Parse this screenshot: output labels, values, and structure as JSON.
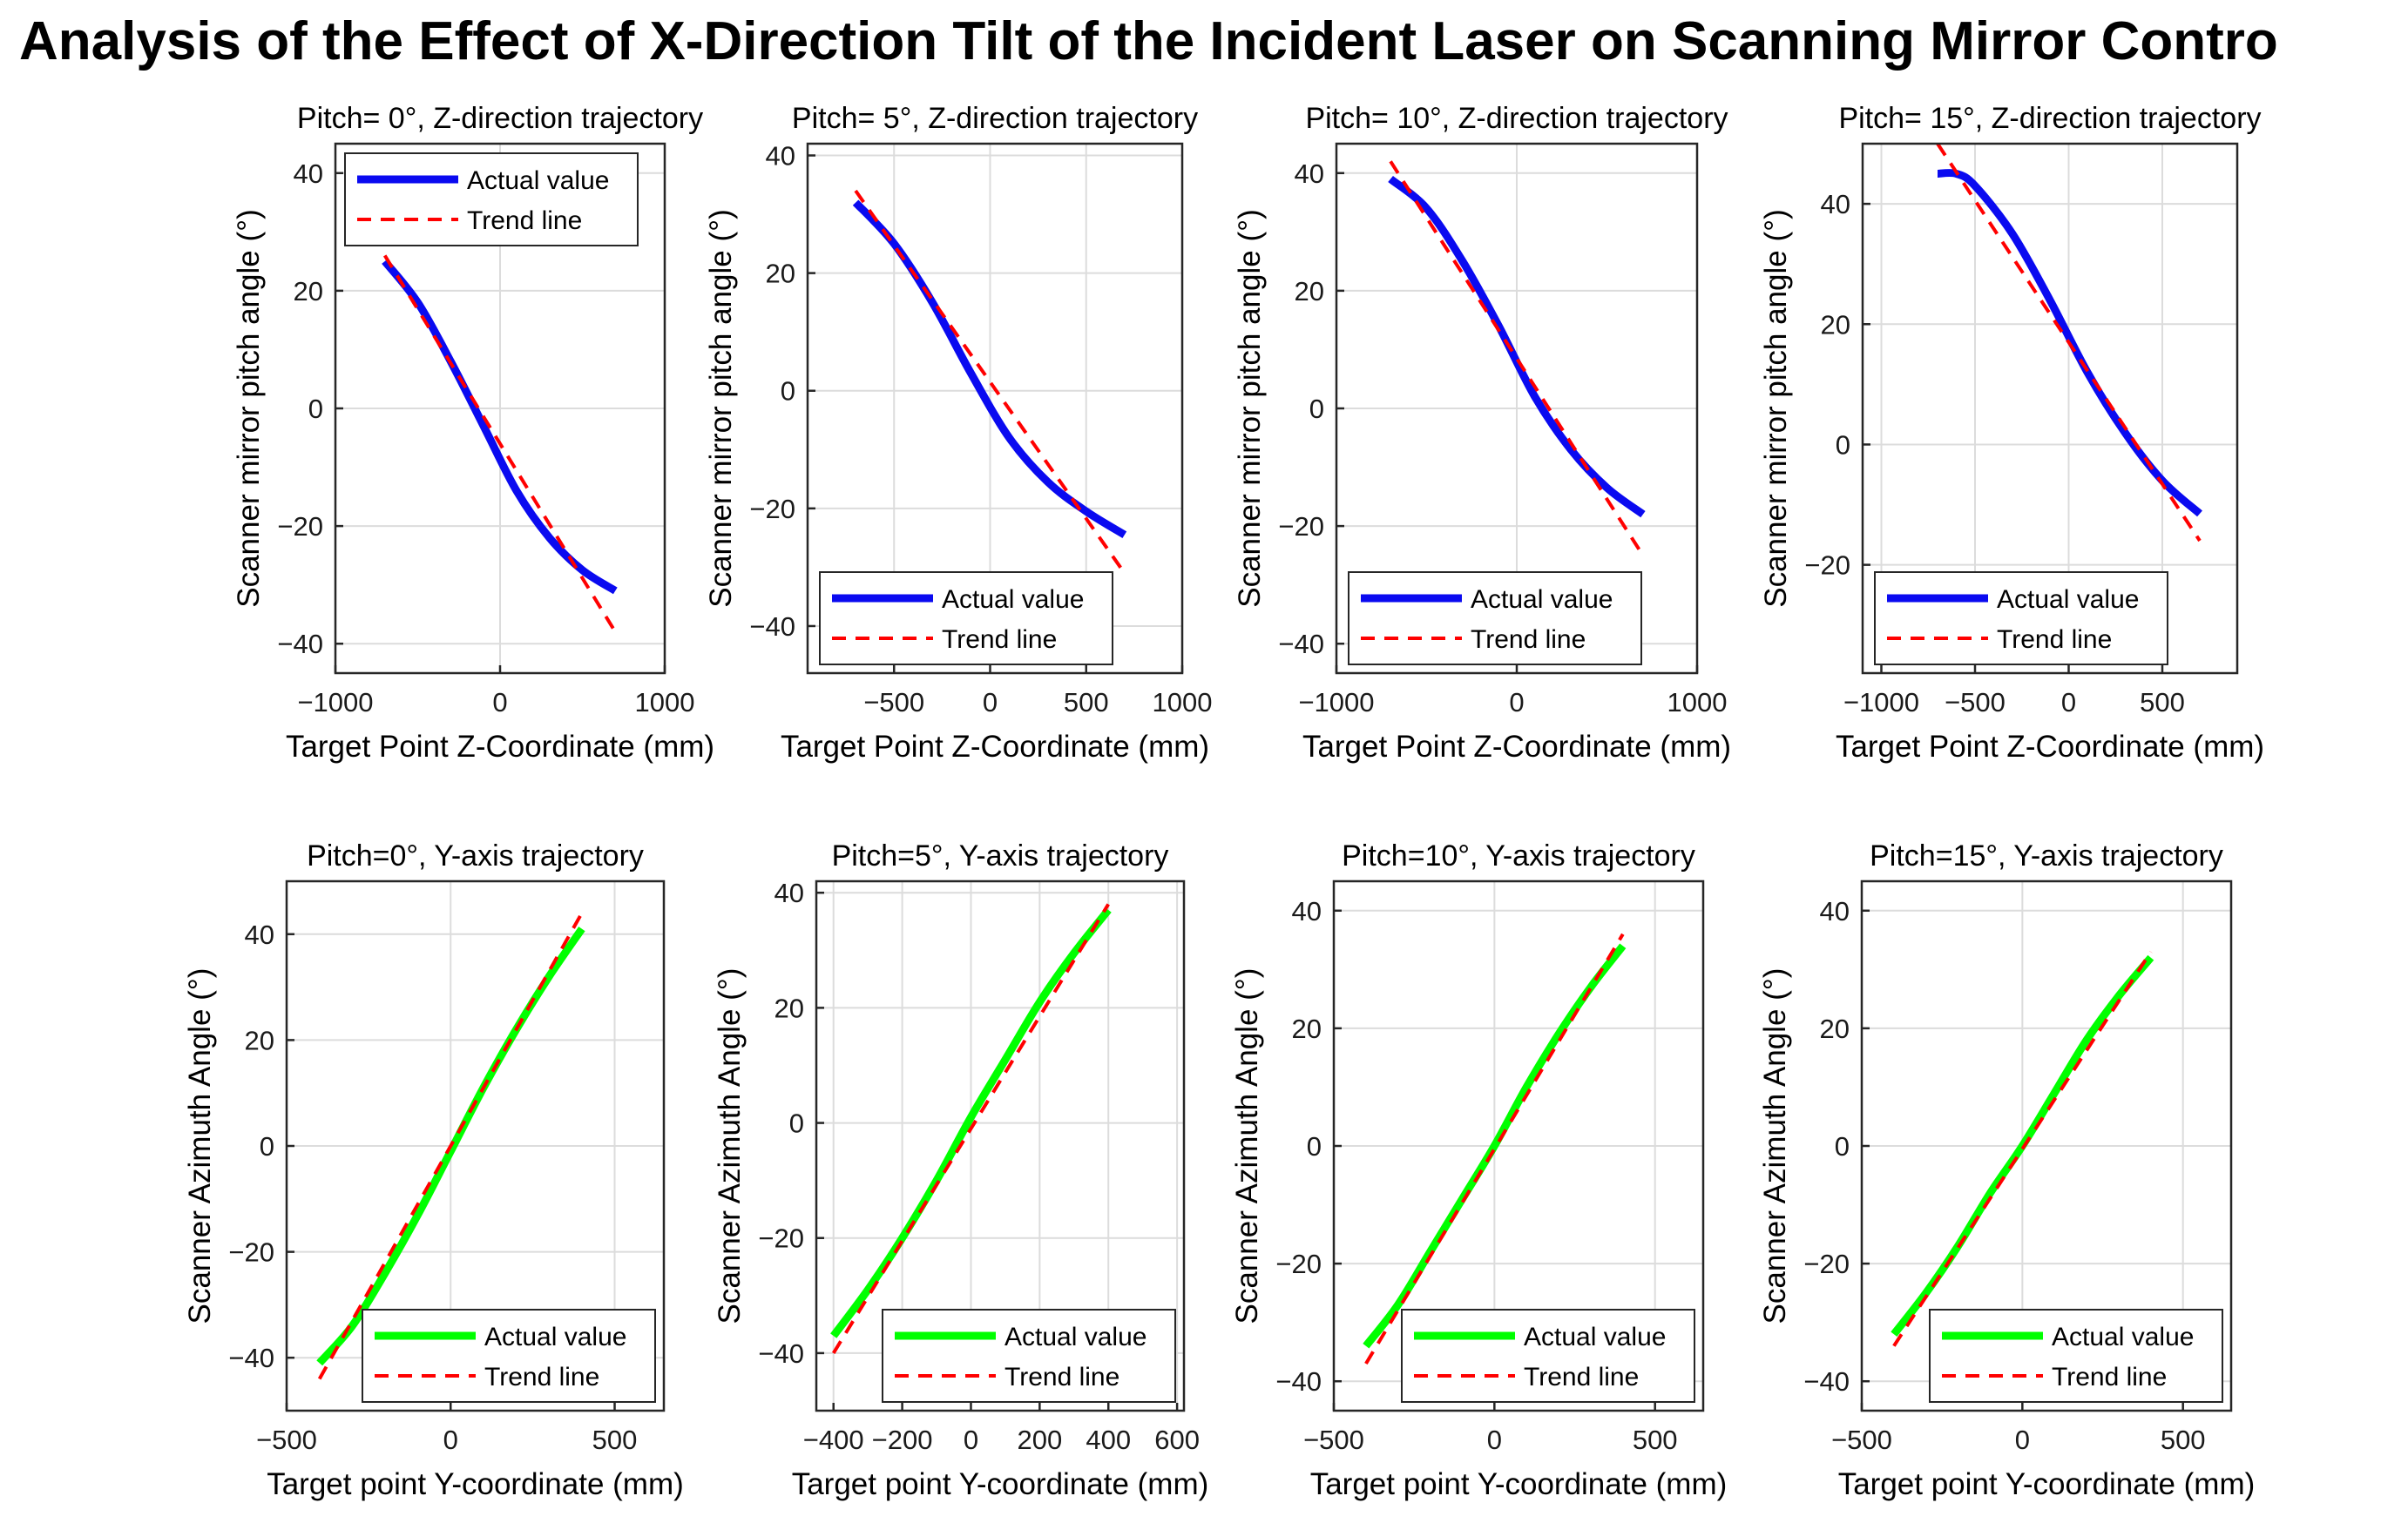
{
  "figure_title": "Analysis of the Effect of X-Direction Tilt of the Incident Laser on Scanning Mirror Contro",
  "legend_labels": {
    "actual": "Actual value",
    "trend": "Trend line"
  },
  "colors": {
    "pitch_actual": "#0a0af0",
    "azimuth_actual": "#00ff00",
    "trend": "#ff0000"
  },
  "chart_data": [
    {
      "type": "line",
      "title": "Pitch= 0°, Z-direction trajectory",
      "xlabel": "Target Point Z-Coordinate (mm)",
      "ylabel": "Scanner mirror pitch angle (°)",
      "xlim": [
        -1000,
        1000
      ],
      "ylim": [
        -45,
        45
      ],
      "xticks": [
        -1000,
        0,
        1000
      ],
      "yticks": [
        -40,
        -20,
        0,
        20,
        40
      ],
      "grid": true,
      "legend_position": "top",
      "series": [
        {
          "name": "Actual value",
          "style": "solid",
          "color": "#0a0af0",
          "x": [
            -700,
            -500,
            -300,
            -100,
            100,
            300,
            500,
            700
          ],
          "y": [
            25,
            18,
            8,
            -3,
            -14,
            -22,
            -27.5,
            -31
          ]
        },
        {
          "name": "Trend line",
          "style": "dashed",
          "color": "#ff0000",
          "x": [
            -700,
            700
          ],
          "y": [
            26,
            -38
          ]
        }
      ]
    },
    {
      "type": "line",
      "title": "Pitch= 5°, Z-direction trajectory",
      "xlabel": "Target Point Z-Coordinate (mm)",
      "ylabel": "Scanner mirror pitch angle (°)",
      "xlim": [
        -950,
        1000
      ],
      "ylim": [
        -48,
        42
      ],
      "xticks": [
        -500,
        0,
        500,
        1000
      ],
      "yticks": [
        -40,
        -20,
        0,
        20,
        40
      ],
      "grid": true,
      "legend_position": "bottom",
      "series": [
        {
          "name": "Actual value",
          "style": "solid",
          "color": "#0a0af0",
          "x": [
            -700,
            -500,
            -300,
            -100,
            100,
            300,
            500,
            700
          ],
          "y": [
            32,
            25,
            15,
            3,
            -8,
            -15.5,
            -20.5,
            -24.5
          ]
        },
        {
          "name": "Trend line",
          "style": "dashed",
          "color": "#ff0000",
          "x": [
            -700,
            700
          ],
          "y": [
            34,
            -31
          ]
        }
      ]
    },
    {
      "type": "line",
      "title": "Pitch= 10°, Z-direction trajectory",
      "xlabel": "Target Point Z-Coordinate (mm)",
      "ylabel": "Scanner mirror pitch angle (°)",
      "xlim": [
        -1000,
        1000
      ],
      "ylim": [
        -45,
        45
      ],
      "xticks": [
        -1000,
        0,
        1000
      ],
      "yticks": [
        -40,
        -20,
        0,
        20,
        40
      ],
      "grid": true,
      "legend_position": "bottom",
      "series": [
        {
          "name": "Actual value",
          "style": "solid",
          "color": "#0a0af0",
          "x": [
            -700,
            -500,
            -300,
            -100,
            100,
            300,
            500,
            700
          ],
          "y": [
            39,
            34,
            25,
            14,
            2,
            -7,
            -13.5,
            -18
          ]
        },
        {
          "name": "Trend line",
          "style": "dashed",
          "color": "#ff0000",
          "x": [
            -700,
            700
          ],
          "y": [
            42,
            -25
          ]
        }
      ]
    },
    {
      "type": "line",
      "title": "Pitch= 15°, Z-direction trajectory",
      "xlabel": "Target Point Z-Coordinate (mm)",
      "ylabel": "Scanner mirror pitch angle (°)",
      "xlim": [
        -1100,
        900
      ],
      "ylim": [
        -38,
        50
      ],
      "xticks": [
        -1000,
        -500,
        0,
        500
      ],
      "yticks": [
        -20,
        0,
        20,
        40
      ],
      "grid": true,
      "legend_position": "bottom",
      "series": [
        {
          "name": "Actual value",
          "style": "solid",
          "color": "#0a0af0",
          "x": [
            -700,
            -600,
            -500,
            -300,
            -100,
            100,
            300,
            500,
            700
          ],
          "y": [
            45,
            45,
            43,
            35,
            24,
            12,
            2,
            -6,
            -11.5
          ]
        },
        {
          "name": "Trend line",
          "style": "dashed",
          "color": "#ff0000",
          "x": [
            -700,
            700
          ],
          "y": [
            50,
            -16
          ]
        }
      ]
    },
    {
      "type": "line",
      "title": "Pitch=0°, Y-axis trajectory",
      "xlabel": "Target point Y-coordinate (mm)",
      "ylabel": "Scanner Azimuth Angle (°)",
      "xlim": [
        -500,
        650
      ],
      "ylim": [
        -50,
        50
      ],
      "xticks": [
        -500,
        0,
        500
      ],
      "yticks": [
        -40,
        -20,
        0,
        20,
        40
      ],
      "grid": true,
      "legend_position": "bottom-right",
      "series": [
        {
          "name": "Actual value",
          "style": "solid",
          "color": "#00ff00",
          "x": [
            -400,
            -300,
            -200,
            -100,
            0,
            100,
            200,
            300,
            400
          ],
          "y": [
            -41,
            -34,
            -24,
            -13,
            -1,
            11,
            22,
            32,
            41
          ]
        },
        {
          "name": "Trend line",
          "style": "dashed",
          "color": "#ff0000",
          "x": [
            -400,
            400
          ],
          "y": [
            -44,
            44
          ]
        }
      ]
    },
    {
      "type": "line",
      "title": "Pitch=5°, Y-axis trajectory",
      "xlabel": "Target point Y-coordinate (mm)",
      "ylabel": "Scanner Azimuth Angle (°)",
      "xlim": [
        -450,
        620
      ],
      "ylim": [
        -50,
        42
      ],
      "xticks": [
        -400,
        -200,
        0,
        200,
        400,
        600
      ],
      "yticks": [
        -40,
        -20,
        0,
        20,
        40
      ],
      "grid": true,
      "legend_position": "bottom-right",
      "series": [
        {
          "name": "Actual value",
          "style": "solid",
          "color": "#00ff00",
          "x": [
            -400,
            -300,
            -200,
            -100,
            0,
            100,
            200,
            300,
            400
          ],
          "y": [
            -37,
            -29,
            -20,
            -10,
            1,
            11,
            21,
            29.5,
            37
          ]
        },
        {
          "name": "Trend line",
          "style": "dashed",
          "color": "#ff0000",
          "x": [
            -400,
            400
          ],
          "y": [
            -40,
            38
          ]
        }
      ]
    },
    {
      "type": "line",
      "title": "Pitch=10°, Y-axis trajectory",
      "xlabel": "Target point Y-coordinate (mm)",
      "ylabel": "Scanner Azimuth Angle (°)",
      "xlim": [
        -500,
        650
      ],
      "ylim": [
        -45,
        45
      ],
      "xticks": [
        -500,
        0,
        500
      ],
      "yticks": [
        -40,
        -20,
        0,
        20,
        40
      ],
      "grid": true,
      "legend_position": "bottom-right",
      "series": [
        {
          "name": "Actual value",
          "style": "solid",
          "color": "#00ff00",
          "x": [
            -400,
            -300,
            -200,
            -100,
            0,
            100,
            200,
            300,
            400
          ],
          "y": [
            -34,
            -27,
            -18,
            -9,
            0,
            10,
            19,
            27,
            34
          ]
        },
        {
          "name": "Trend line",
          "style": "dashed",
          "color": "#ff0000",
          "x": [
            -400,
            400
          ],
          "y": [
            -37,
            36
          ]
        }
      ]
    },
    {
      "type": "line",
      "title": "Pitch=15°, Y-axis trajectory",
      "xlabel": "Target point Y-coordinate (mm)",
      "ylabel": "Scanner Azimuth Angle (°)",
      "xlim": [
        -500,
        650
      ],
      "ylim": [
        -45,
        45
      ],
      "xticks": [
        -500,
        0,
        500
      ],
      "yticks": [
        -40,
        -20,
        0,
        20,
        40
      ],
      "grid": true,
      "legend_position": "bottom-right",
      "series": [
        {
          "name": "Actual value",
          "style": "solid",
          "color": "#00ff00",
          "x": [
            -400,
            -300,
            -200,
            -100,
            0,
            100,
            200,
            300,
            400
          ],
          "y": [
            -32,
            -25,
            -17,
            -8,
            0,
            9,
            18,
            25.5,
            32
          ]
        },
        {
          "name": "Trend line",
          "style": "dashed",
          "color": "#ff0000",
          "x": [
            -400,
            400
          ],
          "y": [
            -34,
            33
          ]
        }
      ]
    }
  ]
}
